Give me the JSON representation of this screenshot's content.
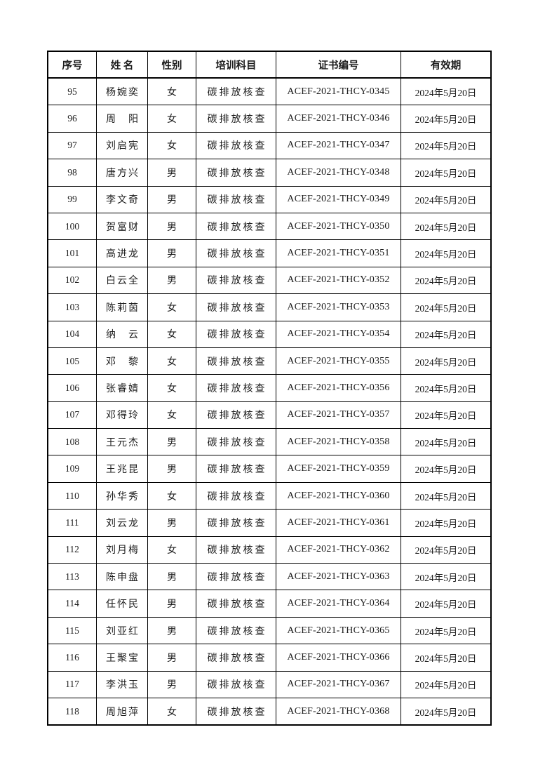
{
  "page": {
    "background": "#ffffff",
    "border_color": "#000000",
    "text_color": "#1c1c1c"
  },
  "table": {
    "columns": [
      {
        "key": "index",
        "label": "序号"
      },
      {
        "key": "name",
        "label": "姓 名"
      },
      {
        "key": "gender",
        "label": "性别"
      },
      {
        "key": "subject",
        "label": "培训科目"
      },
      {
        "key": "cert_no",
        "label": "证书编号"
      },
      {
        "key": "validity",
        "label": "有效期"
      }
    ],
    "rows": [
      {
        "index": "95",
        "name": "杨婉奕",
        "gender": "女",
        "subject": "碳排放核查",
        "cert_no": "ACEF-2021-THCY-0345",
        "validity": "2024年5月20日"
      },
      {
        "index": "96",
        "name": "周　阳",
        "gender": "女",
        "subject": "碳排放核查",
        "cert_no": "ACEF-2021-THCY-0346",
        "validity": "2024年5月20日"
      },
      {
        "index": "97",
        "name": "刘启宪",
        "gender": "女",
        "subject": "碳排放核查",
        "cert_no": "ACEF-2021-THCY-0347",
        "validity": "2024年5月20日"
      },
      {
        "index": "98",
        "name": "唐方兴",
        "gender": "男",
        "subject": "碳排放核查",
        "cert_no": "ACEF-2021-THCY-0348",
        "validity": "2024年5月20日"
      },
      {
        "index": "99",
        "name": "李文奇",
        "gender": "男",
        "subject": "碳排放核查",
        "cert_no": "ACEF-2021-THCY-0349",
        "validity": "2024年5月20日"
      },
      {
        "index": "100",
        "name": "贺富财",
        "gender": "男",
        "subject": "碳排放核查",
        "cert_no": "ACEF-2021-THCY-0350",
        "validity": "2024年5月20日"
      },
      {
        "index": "101",
        "name": "高进龙",
        "gender": "男",
        "subject": "碳排放核查",
        "cert_no": "ACEF-2021-THCY-0351",
        "validity": "2024年5月20日"
      },
      {
        "index": "102",
        "name": "白云全",
        "gender": "男",
        "subject": "碳排放核查",
        "cert_no": "ACEF-2021-THCY-0352",
        "validity": "2024年5月20日"
      },
      {
        "index": "103",
        "name": "陈莉茵",
        "gender": "女",
        "subject": "碳排放核查",
        "cert_no": "ACEF-2021-THCY-0353",
        "validity": "2024年5月20日"
      },
      {
        "index": "104",
        "name": "纳　云",
        "gender": "女",
        "subject": "碳排放核查",
        "cert_no": "ACEF-2021-THCY-0354",
        "validity": "2024年5月20日"
      },
      {
        "index": "105",
        "name": "邓　黎",
        "gender": "女",
        "subject": "碳排放核查",
        "cert_no": "ACEF-2021-THCY-0355",
        "validity": "2024年5月20日"
      },
      {
        "index": "106",
        "name": "张睿婧",
        "gender": "女",
        "subject": "碳排放核查",
        "cert_no": "ACEF-2021-THCY-0356",
        "validity": "2024年5月20日"
      },
      {
        "index": "107",
        "name": "邓得玲",
        "gender": "女",
        "subject": "碳排放核查",
        "cert_no": "ACEF-2021-THCY-0357",
        "validity": "2024年5月20日"
      },
      {
        "index": "108",
        "name": "王元杰",
        "gender": "男",
        "subject": "碳排放核查",
        "cert_no": "ACEF-2021-THCY-0358",
        "validity": "2024年5月20日"
      },
      {
        "index": "109",
        "name": "王兆昆",
        "gender": "男",
        "subject": "碳排放核查",
        "cert_no": "ACEF-2021-THCY-0359",
        "validity": "2024年5月20日"
      },
      {
        "index": "110",
        "name": "孙华秀",
        "gender": "女",
        "subject": "碳排放核查",
        "cert_no": "ACEF-2021-THCY-0360",
        "validity": "2024年5月20日"
      },
      {
        "index": "111",
        "name": "刘云龙",
        "gender": "男",
        "subject": "碳排放核查",
        "cert_no": "ACEF-2021-THCY-0361",
        "validity": "2024年5月20日"
      },
      {
        "index": "112",
        "name": "刘月梅",
        "gender": "女",
        "subject": "碳排放核查",
        "cert_no": "ACEF-2021-THCY-0362",
        "validity": "2024年5月20日"
      },
      {
        "index": "113",
        "name": "陈申盘",
        "gender": "男",
        "subject": "碳排放核查",
        "cert_no": "ACEF-2021-THCY-0363",
        "validity": "2024年5月20日"
      },
      {
        "index": "114",
        "name": "任怀民",
        "gender": "男",
        "subject": "碳排放核查",
        "cert_no": "ACEF-2021-THCY-0364",
        "validity": "2024年5月20日"
      },
      {
        "index": "115",
        "name": "刘亚红",
        "gender": "男",
        "subject": "碳排放核查",
        "cert_no": "ACEF-2021-THCY-0365",
        "validity": "2024年5月20日"
      },
      {
        "index": "116",
        "name": "王聚宝",
        "gender": "男",
        "subject": "碳排放核查",
        "cert_no": "ACEF-2021-THCY-0366",
        "validity": "2024年5月20日"
      },
      {
        "index": "117",
        "name": "李洪玉",
        "gender": "男",
        "subject": "碳排放核查",
        "cert_no": "ACEF-2021-THCY-0367",
        "validity": "2024年5月20日"
      },
      {
        "index": "118",
        "name": "周旭萍",
        "gender": "女",
        "subject": "碳排放核查",
        "cert_no": "ACEF-2021-THCY-0368",
        "validity": "2024年5月20日"
      }
    ]
  }
}
